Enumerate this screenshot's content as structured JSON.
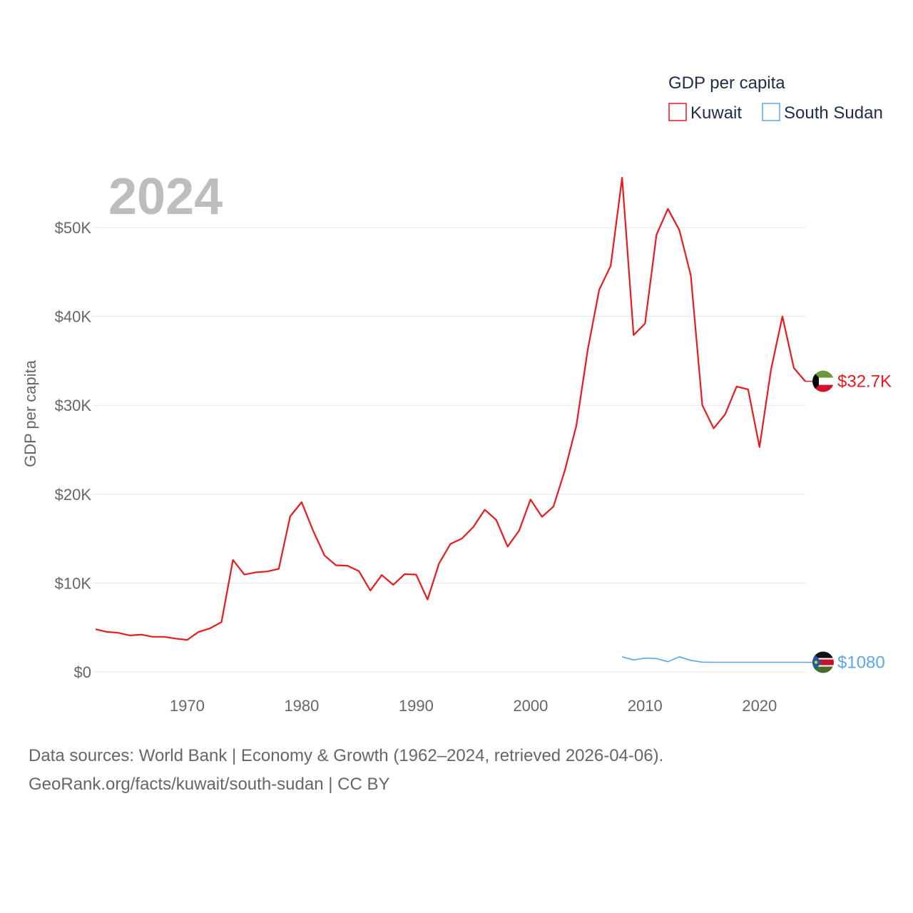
{
  "chart_data": {
    "type": "line",
    "year_label": "2024",
    "ylabel": "GDP per capita",
    "ylim": [
      0,
      55000
    ],
    "yticks": [
      0,
      10000,
      20000,
      30000,
      40000,
      50000
    ],
    "ytick_labels": [
      "$0",
      "$10K",
      "$20K",
      "$30K",
      "$40K",
      "$50K"
    ],
    "xlim": [
      1962,
      2024
    ],
    "xticks": [
      1970,
      1980,
      1990,
      2000,
      2010,
      2020
    ],
    "xtick_labels": [
      "1970",
      "1980",
      "1990",
      "2000",
      "2010",
      "2020"
    ],
    "grid": true,
    "legend": {
      "title": "GDP per capita",
      "position": "top-right"
    },
    "series": [
      {
        "name": "Kuwait",
        "color": "#e8191f",
        "end_label": "$32.7K",
        "flag": "kuwait-flag-icon",
        "points": [
          [
            1962,
            4800
          ],
          [
            1963,
            4500
          ],
          [
            1964,
            4400
          ],
          [
            1965,
            4100
          ],
          [
            1966,
            4200
          ],
          [
            1967,
            3950
          ],
          [
            1968,
            3950
          ],
          [
            1969,
            3750
          ],
          [
            1970,
            3600
          ],
          [
            1971,
            4500
          ],
          [
            1972,
            4900
          ],
          [
            1973,
            5600
          ],
          [
            1974,
            12600
          ],
          [
            1975,
            10950
          ],
          [
            1976,
            11200
          ],
          [
            1977,
            11300
          ],
          [
            1978,
            11600
          ],
          [
            1979,
            17500
          ],
          [
            1980,
            19100
          ],
          [
            1981,
            15900
          ],
          [
            1982,
            13100
          ],
          [
            1983,
            12000
          ],
          [
            1984,
            11950
          ],
          [
            1985,
            11350
          ],
          [
            1986,
            9150
          ],
          [
            1987,
            10900
          ],
          [
            1988,
            9800
          ],
          [
            1989,
            11000
          ],
          [
            1990,
            10950
          ],
          [
            1991,
            8150
          ],
          [
            1992,
            12200
          ],
          [
            1993,
            14400
          ],
          [
            1994,
            15000
          ],
          [
            1995,
            16300
          ],
          [
            1996,
            18250
          ],
          [
            1997,
            17100
          ],
          [
            1998,
            14100
          ],
          [
            1999,
            15900
          ],
          [
            2000,
            19400
          ],
          [
            2001,
            17450
          ],
          [
            2002,
            18600
          ],
          [
            2003,
            22700
          ],
          [
            2004,
            27700
          ],
          [
            2005,
            36300
          ],
          [
            2006,
            43000
          ],
          [
            2007,
            45700
          ],
          [
            2008,
            55600
          ],
          [
            2009,
            37900
          ],
          [
            2010,
            39200
          ],
          [
            2011,
            49200
          ],
          [
            2012,
            52100
          ],
          [
            2013,
            49700
          ],
          [
            2014,
            44600
          ],
          [
            2015,
            30000
          ],
          [
            2016,
            27400
          ],
          [
            2017,
            29000
          ],
          [
            2018,
            32100
          ],
          [
            2019,
            31800
          ],
          [
            2020,
            25300
          ],
          [
            2021,
            34000
          ],
          [
            2022,
            40000
          ],
          [
            2023,
            34200
          ],
          [
            2024,
            32700
          ]
        ]
      },
      {
        "name": "South Sudan",
        "color": "#5ba7e6",
        "end_label": "$1080",
        "flag": "south-sudan-flag-icon",
        "points": [
          [
            2008,
            1700
          ],
          [
            2009,
            1350
          ],
          [
            2010,
            1550
          ],
          [
            2011,
            1500
          ],
          [
            2012,
            1150
          ],
          [
            2013,
            1700
          ],
          [
            2014,
            1300
          ],
          [
            2015,
            1100
          ],
          [
            2016,
            1080
          ],
          [
            2017,
            1080
          ],
          [
            2018,
            1080
          ],
          [
            2019,
            1080
          ],
          [
            2020,
            1080
          ],
          [
            2021,
            1080
          ],
          [
            2022,
            1080
          ],
          [
            2023,
            1080
          ],
          [
            2024,
            1080
          ]
        ]
      }
    ]
  },
  "footer": {
    "line1": "Data sources: World Bank | Economy & Growth (1962–2024, retrieved 2026-04-06).",
    "line2": "GeoRank.org/facts/kuwait/south-sudan | CC BY"
  }
}
